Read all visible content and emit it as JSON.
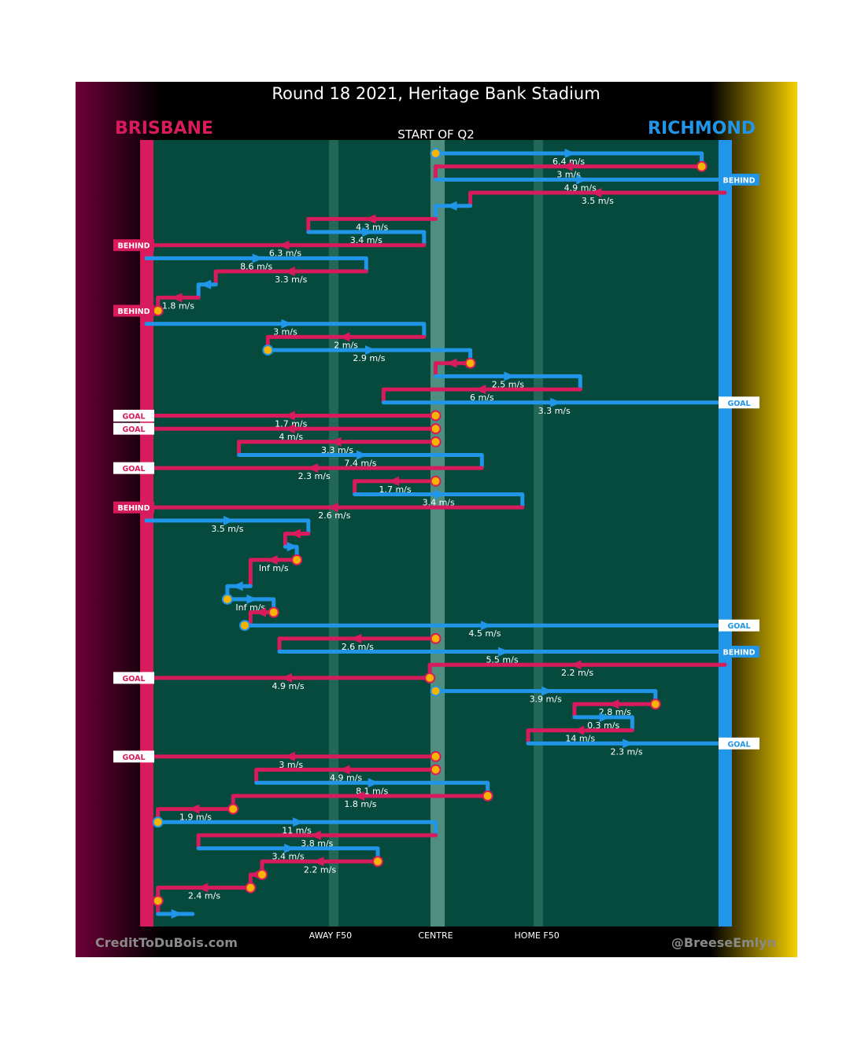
{
  "colors": {
    "home": "#d81b5c",
    "away": "#2196e8",
    "field": "#054a3c",
    "ball": "#f6b400"
  },
  "header": {
    "title": "Round 18 2021, Heritage Bank Stadium",
    "home_team": "BRISBANE",
    "away_team": "RICHMOND",
    "period": "START OF Q2"
  },
  "footer": {
    "left_credit": "CreditToDuBois.com",
    "right_credit": "@BreeseEmlyn"
  },
  "chart_data": {
    "type": "chain-path",
    "title": "Round 18 2021, Heritage Bank Stadium",
    "subtitle": "START OF Q2",
    "x_axis": {
      "ticks": [
        {
          "label": "AWAY F50",
          "value": 0.325
        },
        {
          "label": "CENTRE",
          "value": 0.5
        },
        {
          "label": "HOME F50",
          "value": 0.675
        }
      ],
      "range": [
        0,
        1
      ]
    },
    "legend": [
      {
        "team": "BRISBANE",
        "color": "#d81b5c",
        "side": "left"
      },
      {
        "team": "RICHMOND",
        "color": "#2196e8",
        "side": "right"
      }
    ],
    "chains": [
      {
        "team": "away",
        "from": 0.5,
        "to": 0.96,
        "speed": "6.4 m/s",
        "start_marker": "ball"
      },
      {
        "team": "home",
        "from": 0.96,
        "to": 0.5,
        "speed": "3 m/s",
        "start_marker": "ball"
      },
      {
        "team": "away",
        "from": 0.5,
        "to": 1,
        "speed": "4.9 m/s",
        "result": "BEHIND"
      },
      {
        "team": "home",
        "from": 1,
        "to": 0.56,
        "speed": "3.5 m/s"
      },
      {
        "team": "away",
        "from": 0.56,
        "to": 0.5,
        "speed": ""
      },
      {
        "team": "home",
        "from": 0.5,
        "to": 0.28,
        "speed": "4.3 m/s"
      },
      {
        "team": "away",
        "from": 0.28,
        "to": 0.48,
        "speed": "3.4 m/s"
      },
      {
        "team": "home",
        "from": 0.48,
        "to": 0,
        "speed": "6.3 m/s",
        "result": "BEHIND"
      },
      {
        "team": "away",
        "from": 0,
        "to": 0.38,
        "speed": "8.6 m/s"
      },
      {
        "team": "home",
        "from": 0.38,
        "to": 0.12,
        "speed": "3.3 m/s"
      },
      {
        "team": "away",
        "from": 0.12,
        "to": 0.09,
        "speed": ""
      },
      {
        "team": "home",
        "from": 0.09,
        "to": 0.02,
        "speed": "1.8 m/s"
      },
      {
        "team": "home",
        "from": 0.02,
        "to": 0,
        "speed": "",
        "start_marker": "ball",
        "result": "BEHIND"
      },
      {
        "team": "away",
        "from": 0,
        "to": 0.48,
        "speed": "3 m/s"
      },
      {
        "team": "home",
        "from": 0.48,
        "to": 0.21,
        "speed": "2 m/s"
      },
      {
        "team": "away",
        "from": 0.21,
        "to": 0.56,
        "speed": "2.9 m/s",
        "start_marker": "ball"
      },
      {
        "team": "home",
        "from": 0.56,
        "to": 0.5,
        "speed": "",
        "start_marker": "ball"
      },
      {
        "team": "away",
        "from": 0.5,
        "to": 0.75,
        "speed": "2.5 m/s"
      },
      {
        "team": "home",
        "from": 0.75,
        "to": 0.41,
        "speed": "6 m/s"
      },
      {
        "team": "away",
        "from": 0.41,
        "to": 1,
        "speed": "3.3 m/s",
        "result": "GOAL"
      },
      {
        "team": "home",
        "from": 0.5,
        "to": 0,
        "speed": "1.7 m/s",
        "start_marker": "ball",
        "result": "GOAL"
      },
      {
        "team": "home",
        "from": 0.5,
        "to": 0,
        "speed": "4 m/s",
        "start_marker": "ball",
        "result": "GOAL"
      },
      {
        "team": "home",
        "from": 0.5,
        "to": 0.16,
        "speed": "3.3 m/s",
        "start_marker": "ball"
      },
      {
        "team": "away",
        "from": 0.16,
        "to": 0.58,
        "speed": "7.4 m/s"
      },
      {
        "team": "home",
        "from": 0.58,
        "to": 0,
        "speed": "2.3 m/s",
        "result": "GOAL"
      },
      {
        "team": "home",
        "from": 0.5,
        "to": 0.36,
        "speed": "1.7 m/s",
        "start_marker": "ball"
      },
      {
        "team": "away",
        "from": 0.36,
        "to": 0.65,
        "speed": "3.4 m/s"
      },
      {
        "team": "home",
        "from": 0.65,
        "to": 0,
        "speed": "2.6 m/s",
        "result": "BEHIND"
      },
      {
        "team": "away",
        "from": 0,
        "to": 0.28,
        "speed": "3.5 m/s"
      },
      {
        "team": "home",
        "from": 0.28,
        "to": 0.24,
        "speed": ""
      },
      {
        "team": "away",
        "from": 0.24,
        "to": 0.26,
        "speed": ""
      },
      {
        "team": "home",
        "from": 0.26,
        "to": 0.18,
        "speed": "Inf m/s",
        "start_marker": "ball"
      },
      {
        "team": "home",
        "from": 0.18,
        "to": 0.18,
        "speed": ""
      },
      {
        "team": "away",
        "from": 0.18,
        "to": 0.14,
        "speed": ""
      },
      {
        "team": "away",
        "from": 0.14,
        "to": 0.22,
        "speed": "Inf m/s",
        "start_marker": "ball"
      },
      {
        "team": "home",
        "from": 0.22,
        "to": 0.18,
        "speed": "",
        "start_marker": "ball"
      },
      {
        "team": "away",
        "from": 0.17,
        "to": 1,
        "speed": "4.5 m/s",
        "start_marker": "ball",
        "result": "GOAL"
      },
      {
        "team": "home",
        "from": 0.5,
        "to": 0.23,
        "speed": "2.6 m/s",
        "start_marker": "ball"
      },
      {
        "team": "away",
        "from": 0.23,
        "to": 1,
        "speed": "5.5 m/s",
        "result": "BEHIND"
      },
      {
        "team": "home",
        "from": 1,
        "to": 0.49,
        "speed": "2.2 m/s"
      },
      {
        "team": "home",
        "from": 0.49,
        "to": 0,
        "speed": "4.9 m/s",
        "start_marker": "ball",
        "result": "GOAL"
      },
      {
        "team": "away",
        "from": 0.5,
        "to": 0.88,
        "speed": "3.9 m/s",
        "start_marker": "ball"
      },
      {
        "team": "home",
        "from": 0.88,
        "to": 0.74,
        "speed": "2.8 m/s",
        "start_marker": "ball"
      },
      {
        "team": "away",
        "from": 0.74,
        "to": 0.84,
        "speed": "0.3 m/s"
      },
      {
        "team": "home",
        "from": 0.84,
        "to": 0.66,
        "speed": "14 m/s"
      },
      {
        "team": "away",
        "from": 0.66,
        "to": 1,
        "speed": "2.3 m/s",
        "result": "GOAL"
      },
      {
        "team": "home",
        "from": 0.5,
        "to": 0,
        "speed": "3 m/s",
        "start_marker": "ball",
        "result": "GOAL"
      },
      {
        "team": "home",
        "from": 0.5,
        "to": 0.19,
        "speed": "4.9 m/s",
        "start_marker": "ball"
      },
      {
        "team": "away",
        "from": 0.19,
        "to": 0.59,
        "speed": "8.1 m/s"
      },
      {
        "team": "home",
        "from": 0.59,
        "to": 0.15,
        "speed": "1.8 m/s",
        "start_marker": "ball"
      },
      {
        "team": "home",
        "from": 0.15,
        "to": 0.02,
        "speed": "1.9 m/s",
        "start_marker": "ball"
      },
      {
        "team": "away",
        "from": 0.02,
        "to": 0.5,
        "speed": "11 m/s",
        "start_marker": "ball"
      },
      {
        "team": "home",
        "from": 0.5,
        "to": 0.09,
        "speed": "3.8 m/s"
      },
      {
        "team": "away",
        "from": 0.09,
        "to": 0.4,
        "speed": "3.4 m/s"
      },
      {
        "team": "home",
        "from": 0.4,
        "to": 0.2,
        "speed": "2.2 m/s",
        "start_marker": "ball"
      },
      {
        "team": "home",
        "from": 0.2,
        "to": 0.18,
        "speed": "",
        "start_marker": "ball"
      },
      {
        "team": "home",
        "from": 0.18,
        "to": 0.02,
        "speed": "2.4 m/s",
        "start_marker": "ball"
      },
      {
        "team": "home",
        "from": 0.02,
        "to": 0.02,
        "speed": "",
        "start_marker": "ball"
      },
      {
        "team": "away",
        "from": 0.02,
        "to": 0.08,
        "speed": ""
      }
    ]
  }
}
